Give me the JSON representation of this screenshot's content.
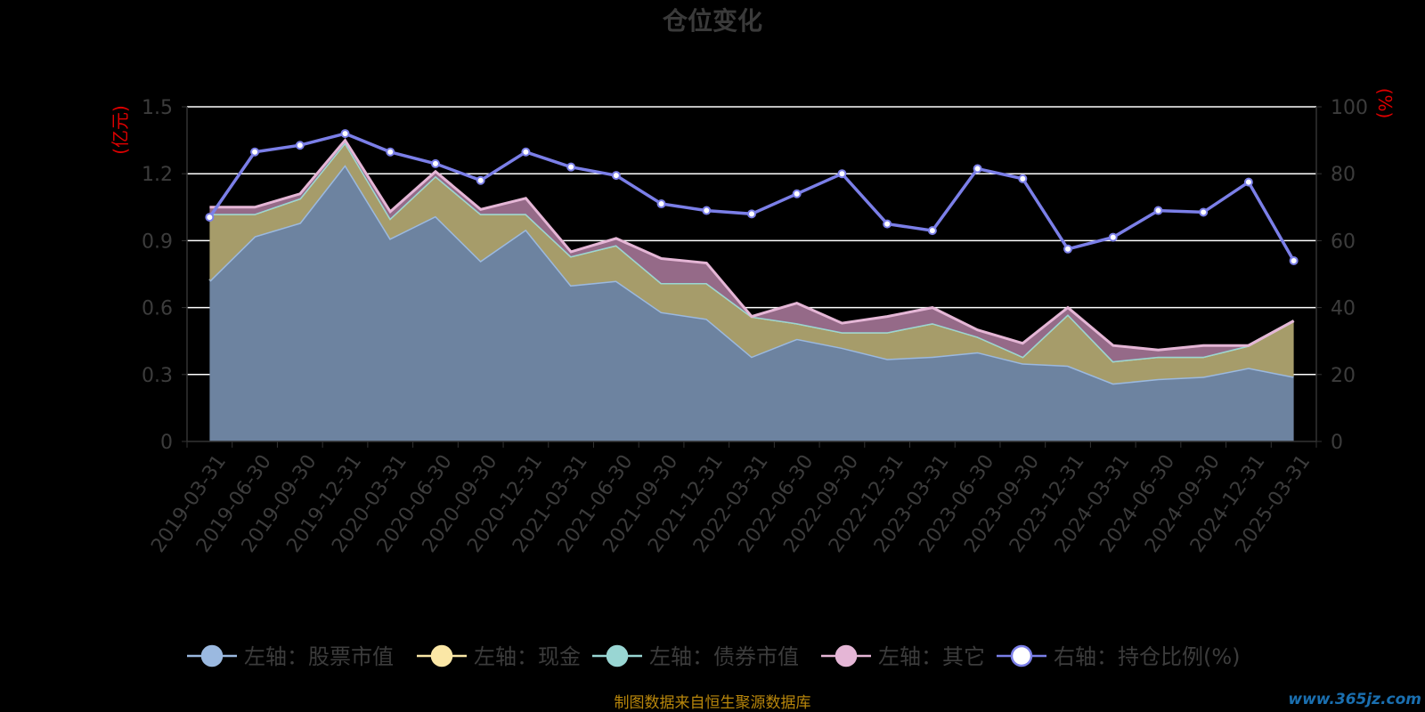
{
  "chart_data": {
    "type": "area",
    "title": "仓位变化",
    "left_axis_unit": "(亿元)",
    "right_axis_unit": "(%)",
    "left_axis": {
      "min": 0,
      "max": 1.5,
      "ticks": [
        "0",
        "0.3",
        "0.6",
        "0.9",
        "1.2",
        "1.5"
      ]
    },
    "right_axis": {
      "min": 0,
      "max": 100,
      "ticks": [
        "0",
        "20",
        "40",
        "60",
        "80",
        "100"
      ]
    },
    "grid": true,
    "stacked": true,
    "legend_position": "bottom",
    "categories": [
      "2019-03-31",
      "2019-06-30",
      "2019-09-30",
      "2019-12-31",
      "2020-03-31",
      "2020-06-30",
      "2020-09-30",
      "2020-12-31",
      "2021-03-31",
      "2021-06-30",
      "2021-09-30",
      "2021-12-31",
      "2022-03-31",
      "2022-06-30",
      "2022-09-30",
      "2022-12-31",
      "2023-03-31",
      "2023-06-30",
      "2023-09-30",
      "2023-12-31",
      "2024-03-31",
      "2024-06-30",
      "2024-09-30",
      "2024-12-31",
      "2025-03-31"
    ],
    "series": [
      {
        "name": "左轴：股票市值",
        "axis": "left",
        "color": "#9bb9e0",
        "fill": "#6d83a0",
        "values": [
          0.72,
          0.92,
          0.98,
          1.24,
          0.91,
          1.01,
          0.81,
          0.95,
          0.7,
          0.72,
          0.58,
          0.55,
          0.38,
          0.46,
          0.42,
          0.37,
          0.38,
          0.4,
          0.35,
          0.34,
          0.26,
          0.28,
          0.29,
          0.33,
          0.29
        ]
      },
      {
        "name": "左轴：现金",
        "axis": "left",
        "color": "#fbe7a6",
        "fill": "#a69c6a",
        "values": [
          0.3,
          0.1,
          0.11,
          0.1,
          0.09,
          0.18,
          0.21,
          0.07,
          0.13,
          0.16,
          0.13,
          0.16,
          0.18,
          0.07,
          0.07,
          0.12,
          0.15,
          0.07,
          0.03,
          0.23,
          0.1,
          0.1,
          0.09,
          0.1,
          0.25
        ]
      },
      {
        "name": "左轴：债券市值",
        "axis": "left",
        "color": "#99d6d3",
        "fill": "#5f8f8c",
        "values": [
          0,
          0,
          0,
          0,
          0,
          0,
          0,
          0,
          0,
          0,
          0,
          0,
          0,
          0,
          0,
          0,
          0,
          0,
          0,
          0,
          0,
          0,
          0,
          0,
          0
        ]
      },
      {
        "name": "左轴：其它",
        "axis": "left",
        "color": "#e5b6d6",
        "fill": "#956a88",
        "values": [
          0.03,
          0.03,
          0.02,
          0.01,
          0.03,
          0.02,
          0.02,
          0.07,
          0.02,
          0.03,
          0.11,
          0.09,
          0.0,
          0.09,
          0.04,
          0.07,
          0.07,
          0.03,
          0.06,
          0.03,
          0.07,
          0.03,
          0.05,
          0.0,
          0.0
        ]
      },
      {
        "name": "右轴：持仓比例(%)",
        "axis": "right",
        "color": "#7b7fe8",
        "type": "line",
        "values": [
          67,
          86.5,
          88.5,
          92,
          86.5,
          83,
          78,
          86.5,
          82,
          79.5,
          71,
          69,
          68,
          74,
          80,
          65,
          63,
          81.5,
          78.5,
          57.5,
          61,
          69,
          68.5,
          77.5,
          54
        ]
      }
    ]
  },
  "source_note": "制图数据来自恒生聚源数据库",
  "watermark": "www.365jz.com"
}
